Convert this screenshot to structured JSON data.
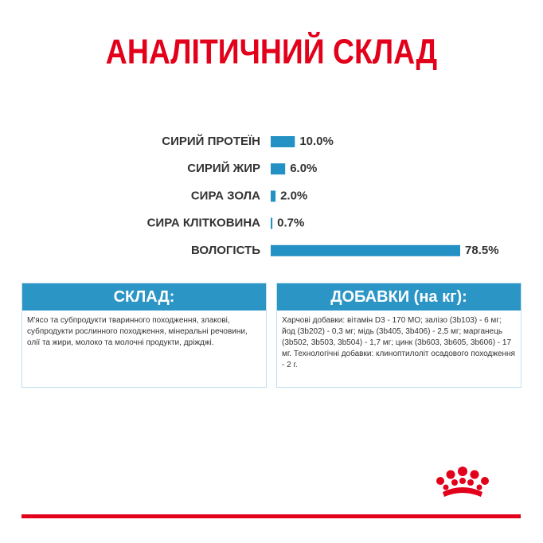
{
  "chart_data": {
    "type": "bar",
    "orientation": "horizontal",
    "title": "АНАЛІТИЧНИЙ СКЛАД",
    "categories": [
      "СИРИЙ ПРОТЕЇН",
      "СИРИЙ ЖИР",
      "СИРА ЗОЛА",
      "СИРА КЛІТКОВИНА",
      "ВОЛОГІСТЬ"
    ],
    "values": [
      10.0,
      6.0,
      2.0,
      0.7,
      78.5
    ],
    "value_labels": [
      "10.0%",
      "6.0%",
      "2.0%",
      "0.7%",
      "78.5%"
    ],
    "color": "#2391c3"
  },
  "composition": {
    "title": "СКЛАД:",
    "text": "М'ясо та субпродукти тваринного походження, злакові, субпродукти рослинного походження, мінеральні речовини, олії та жири, молоко та молочні продукти, дріжджі."
  },
  "additives": {
    "title": "ДОБАВКИ (на кг):",
    "text": "Харчові добавки: вітамін D3 - 170 МО; залізо (3b103) - 6 мг; йод (3b202) - 0,3 мг; мідь (3b405, 3b406) - 2,5 мг; марганець (3b502, 3b503, 3b504) - 1,7 мг; цинк (3b603, 3b605, 3b606) - 17 мг. Технологічні добавки: клиноптилоліт осадового походження - 2 г."
  }
}
